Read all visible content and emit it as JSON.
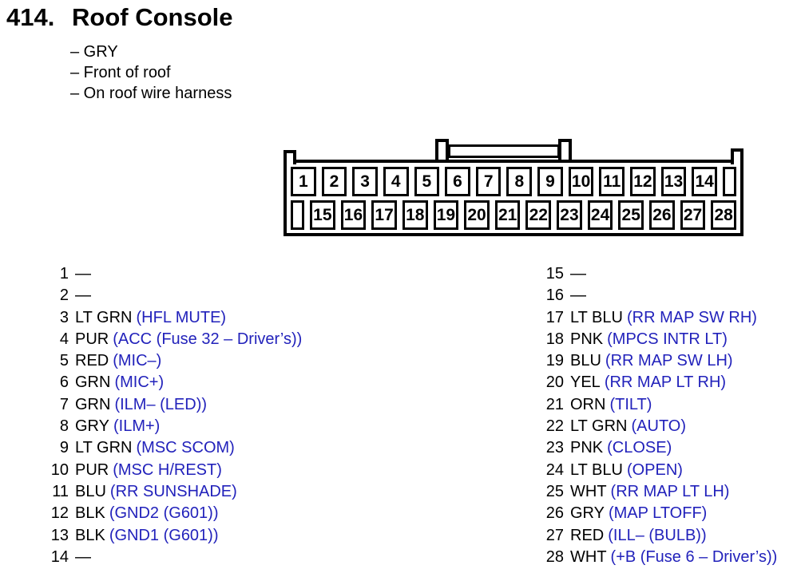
{
  "header": {
    "number": "414.",
    "title": "Roof Console",
    "notes": [
      "– GRY",
      "– Front of roof",
      "– On roof wire harness"
    ]
  },
  "connector": {
    "top_row": [
      "1",
      "2",
      "3",
      "4",
      "5",
      "6",
      "7",
      "8",
      "9",
      "10",
      "11",
      "12",
      "13",
      "14"
    ],
    "bottom_row": [
      "15",
      "16",
      "17",
      "18",
      "19",
      "20",
      "21",
      "22",
      "23",
      "24",
      "25",
      "26",
      "27",
      "28"
    ]
  },
  "pins_left": [
    {
      "num": "1",
      "wire": "—",
      "signal": ""
    },
    {
      "num": "2",
      "wire": "—",
      "signal": ""
    },
    {
      "num": "3",
      "wire": "LT GRN",
      "signal": "(HFL MUTE)"
    },
    {
      "num": "4",
      "wire": "PUR",
      "signal": "(ACC (Fuse 32 – Driver’s))"
    },
    {
      "num": "5",
      "wire": "RED",
      "signal": "(MIC–)"
    },
    {
      "num": "6",
      "wire": "GRN",
      "signal": "(MIC+)"
    },
    {
      "num": "7",
      "wire": "GRN",
      "signal": "(ILM– (LED))"
    },
    {
      "num": "8",
      "wire": "GRY",
      "signal": "(ILM+)"
    },
    {
      "num": "9",
      "wire": "LT GRN",
      "signal": "(MSC SCOM)"
    },
    {
      "num": "10",
      "wire": "PUR",
      "signal": "(MSC H/REST)"
    },
    {
      "num": "11",
      "wire": "BLU",
      "signal": "(RR SUNSHADE)"
    },
    {
      "num": "12",
      "wire": "BLK",
      "signal": "(GND2 (G601))"
    },
    {
      "num": "13",
      "wire": "BLK",
      "signal": "(GND1 (G601))"
    },
    {
      "num": "14",
      "wire": "—",
      "signal": ""
    }
  ],
  "pins_right": [
    {
      "num": "15",
      "wire": "—",
      "signal": ""
    },
    {
      "num": "16",
      "wire": "—",
      "signal": ""
    },
    {
      "num": "17",
      "wire": "LT BLU",
      "signal": "(RR MAP SW RH)"
    },
    {
      "num": "18",
      "wire": "PNK",
      "signal": "(MPCS INTR LT)"
    },
    {
      "num": "19",
      "wire": "BLU",
      "signal": "(RR MAP SW LH)"
    },
    {
      "num": "20",
      "wire": "YEL",
      "signal": "(RR MAP LT RH)"
    },
    {
      "num": "21",
      "wire": "ORN",
      "signal": "(TILT)"
    },
    {
      "num": "22",
      "wire": "LT GRN",
      "signal": "(AUTO)"
    },
    {
      "num": "23",
      "wire": "PNK",
      "signal": "(CLOSE)"
    },
    {
      "num": "24",
      "wire": "LT BLU",
      "signal": "(OPEN)"
    },
    {
      "num": "25",
      "wire": "WHT",
      "signal": "(RR MAP LT LH)"
    },
    {
      "num": "26",
      "wire": "GRY",
      "signal": "(MAP LTOFF)"
    },
    {
      "num": "27",
      "wire": "RED",
      "signal": "(ILL– (BULB))"
    },
    {
      "num": "28",
      "wire": "WHT",
      "signal": "(+B (Fuse 6 – Driver’s))"
    }
  ],
  "colors": {
    "signal_text": "#2222bb",
    "body_text": "#000000",
    "background": "#ffffff"
  }
}
